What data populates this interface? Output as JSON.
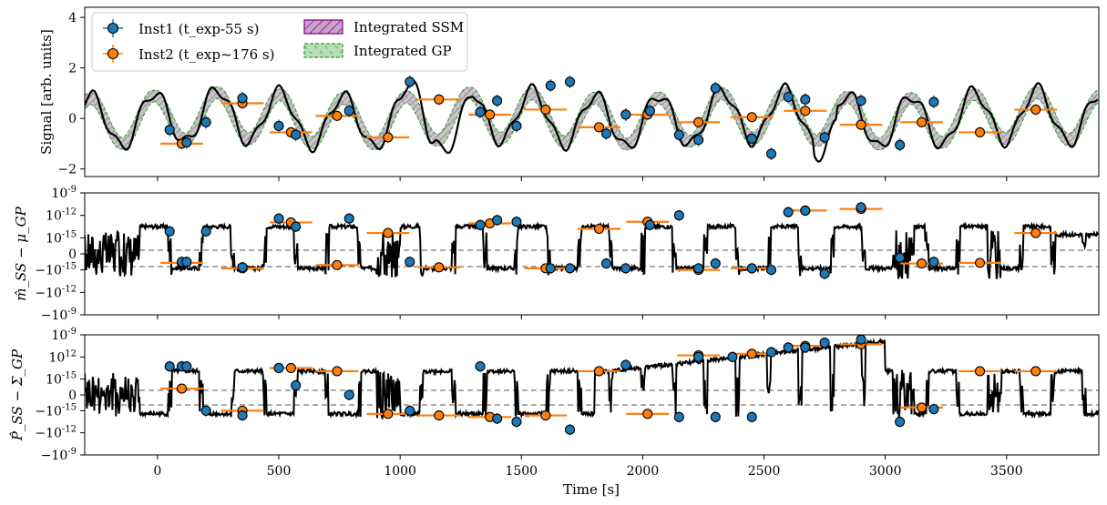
{
  "chart_data": [
    {
      "type": "line",
      "panel": "signal",
      "ylabel": "Signal [arb. units]",
      "xlabel": "",
      "xlim": [
        -300,
        3880
      ],
      "ylim": [
        -2.3,
        4.4
      ],
      "yticks": [
        -2,
        0,
        2,
        4
      ],
      "ytick_labels": [
        "−2",
        "0",
        "2",
        "4"
      ],
      "grid": false,
      "legend_placement": "top-left",
      "legend": {
        "inst1": "Inst1 (t_exp-55 s)",
        "inst2": "Inst2 (t_exp~176 s)",
        "ssm": "Integrated SSM",
        "gp": "Integrated GP"
      },
      "colors": {
        "inst1": "#1f77b4",
        "inst2": "#ff7f0e",
        "ssm": "#800080",
        "gp": "#2ca02c",
        "band_fill": "#c8c8c8",
        "line": "#000000"
      },
      "series": [
        {
          "name": "Inst1 (t_exp-55 s)",
          "points": [
            [
              50,
              -0.45
            ],
            [
              120,
              -0.95
            ],
            [
              200,
              -0.15
            ],
            [
              350,
              0.8
            ],
            [
              500,
              -0.3
            ],
            [
              570,
              -0.65
            ],
            [
              790,
              0.3
            ],
            [
              1040,
              1.45
            ],
            [
              1330,
              0.25
            ],
            [
              1400,
              0.7
            ],
            [
              1480,
              -0.3
            ],
            [
              1620,
              1.3
            ],
            [
              1700,
              1.45
            ],
            [
              1850,
              -0.6
            ],
            [
              1930,
              0.15
            ],
            [
              2030,
              0.3
            ],
            [
              2150,
              -0.65
            ],
            [
              2230,
              -0.85
            ],
            [
              2300,
              1.2
            ],
            [
              2450,
              -0.8
            ],
            [
              2530,
              -1.4
            ],
            [
              2600,
              0.85
            ],
            [
              2670,
              0.75
            ],
            [
              2750,
              -0.75
            ],
            [
              2900,
              0.7
            ],
            [
              3060,
              -1.05
            ],
            [
              3200,
              0.65
            ]
          ]
        },
        {
          "name": "Inst2 (t_exp~176 s)",
          "points": [
            [
              100,
              -1.0
            ],
            [
              350,
              0.6
            ],
            [
              550,
              -0.55
            ],
            [
              740,
              0.1
            ],
            [
              950,
              -0.75
            ],
            [
              1160,
              0.75
            ],
            [
              1370,
              0.15
            ],
            [
              1600,
              0.35
            ],
            [
              1820,
              -0.35
            ],
            [
              2020,
              0.15
            ],
            [
              2230,
              -0.15
            ],
            [
              2450,
              0.05
            ],
            [
              2670,
              0.3
            ],
            [
              2900,
              -0.25
            ],
            [
              3150,
              -0.15
            ],
            [
              3390,
              -0.55
            ],
            [
              3620,
              0.35
            ]
          ]
        }
      ]
    },
    {
      "type": "line",
      "panel": "mean-residual",
      "ylabel": "m̂_SS − μ_GP",
      "yticks": [
        "10^{-9}",
        "10^{-12}",
        "10^{-15}",
        "0",
        "−10^{-15}",
        "−10^{-12}",
        "−10^{-9}"
      ],
      "grid": false,
      "series": [
        {
          "name": "Inst1 (t_exp-55 s)",
          "points": [
            [
              50,
              0.7
            ],
            [
              100,
              -0.25
            ],
            [
              120,
              -0.25
            ],
            [
              200,
              0.7
            ],
            [
              350,
              -0.42
            ],
            [
              500,
              1.1
            ],
            [
              570,
              0.85
            ],
            [
              790,
              1.1
            ],
            [
              1040,
              -0.25
            ],
            [
              1330,
              0.9
            ],
            [
              1400,
              1.05
            ],
            [
              1480,
              1.0
            ],
            [
              1620,
              -0.45
            ],
            [
              1700,
              -0.45
            ],
            [
              1850,
              -0.3
            ],
            [
              1930,
              -0.45
            ],
            [
              2030,
              0.9
            ],
            [
              2150,
              1.2
            ],
            [
              2230,
              -0.45
            ],
            [
              2300,
              -0.3
            ],
            [
              2450,
              -0.45
            ],
            [
              2530,
              -0.5
            ],
            [
              2600,
              1.3
            ],
            [
              2670,
              1.35
            ],
            [
              2750,
              -0.62
            ],
            [
              2900,
              1.45
            ],
            [
              3060,
              -0.12
            ],
            [
              3200,
              -0.25
            ]
          ]
        },
        {
          "name": "Inst2 (t_exp~176 s)",
          "points": [
            [
              100,
              -0.28
            ],
            [
              350,
              -0.45
            ],
            [
              550,
              0.98
            ],
            [
              740,
              -0.35
            ],
            [
              950,
              0.65
            ],
            [
              1160,
              -0.42
            ],
            [
              1370,
              0.95
            ],
            [
              1600,
              -0.45
            ],
            [
              1820,
              0.78
            ],
            [
              2020,
              1.0
            ],
            [
              2230,
              -0.5
            ],
            [
              2450,
              -0.45
            ],
            [
              2670,
              1.35
            ],
            [
              2900,
              1.4
            ],
            [
              3150,
              -0.3
            ],
            [
              3390,
              -0.28
            ],
            [
              3620,
              0.65
            ]
          ]
        }
      ]
    },
    {
      "type": "line",
      "panel": "covariance-residual",
      "ylabel": "P̂_SS − Σ_GP",
      "xlabel": "Time [s]",
      "xticks": [
        0,
        500,
        1000,
        1500,
        2000,
        2500,
        3000,
        3500
      ],
      "yticks": [
        "10^{-9}",
        "10^{12}",
        "10^{-15}",
        "0",
        "−10^{-15}",
        "−10^{-12}",
        "−10^{-9}"
      ],
      "grid": false,
      "series": [
        {
          "name": "Inst1 (t_exp-55 s)",
          "points": [
            [
              50,
              0.9
            ],
            [
              100,
              0.9
            ],
            [
              120,
              0.9
            ],
            [
              200,
              -0.5
            ],
            [
              350,
              -0.65
            ],
            [
              500,
              0.85
            ],
            [
              570,
              0.3
            ],
            [
              790,
              0.0
            ],
            [
              1040,
              -0.5
            ],
            [
              1330,
              0.9
            ],
            [
              1400,
              -0.75
            ],
            [
              1480,
              -0.85
            ],
            [
              1700,
              -1.1
            ],
            [
              1930,
              0.95
            ],
            [
              2150,
              -0.7
            ],
            [
              2230,
              1.2
            ],
            [
              2300,
              -0.7
            ],
            [
              2370,
              1.2
            ],
            [
              2450,
              -0.7
            ],
            [
              2530,
              1.35
            ],
            [
              2600,
              1.5
            ],
            [
              2670,
              1.5
            ],
            [
              2750,
              1.65
            ],
            [
              2900,
              1.75
            ],
            [
              3060,
              -0.85
            ],
            [
              3200,
              -0.45
            ]
          ]
        },
        {
          "name": "Inst2 (t_exp~176 s)",
          "points": [
            [
              100,
              0.2
            ],
            [
              350,
              -0.5
            ],
            [
              550,
              0.85
            ],
            [
              740,
              0.75
            ],
            [
              950,
              -0.6
            ],
            [
              1160,
              -0.65
            ],
            [
              1370,
              -0.7
            ],
            [
              1600,
              -0.65
            ],
            [
              1820,
              0.75
            ],
            [
              2020,
              -0.6
            ],
            [
              2230,
              1.25
            ],
            [
              2450,
              1.3
            ],
            [
              2670,
              1.55
            ],
            [
              2900,
              1.6
            ],
            [
              3150,
              -0.4
            ],
            [
              3390,
              0.75
            ],
            [
              3620,
              0.75
            ]
          ]
        }
      ]
    }
  ]
}
